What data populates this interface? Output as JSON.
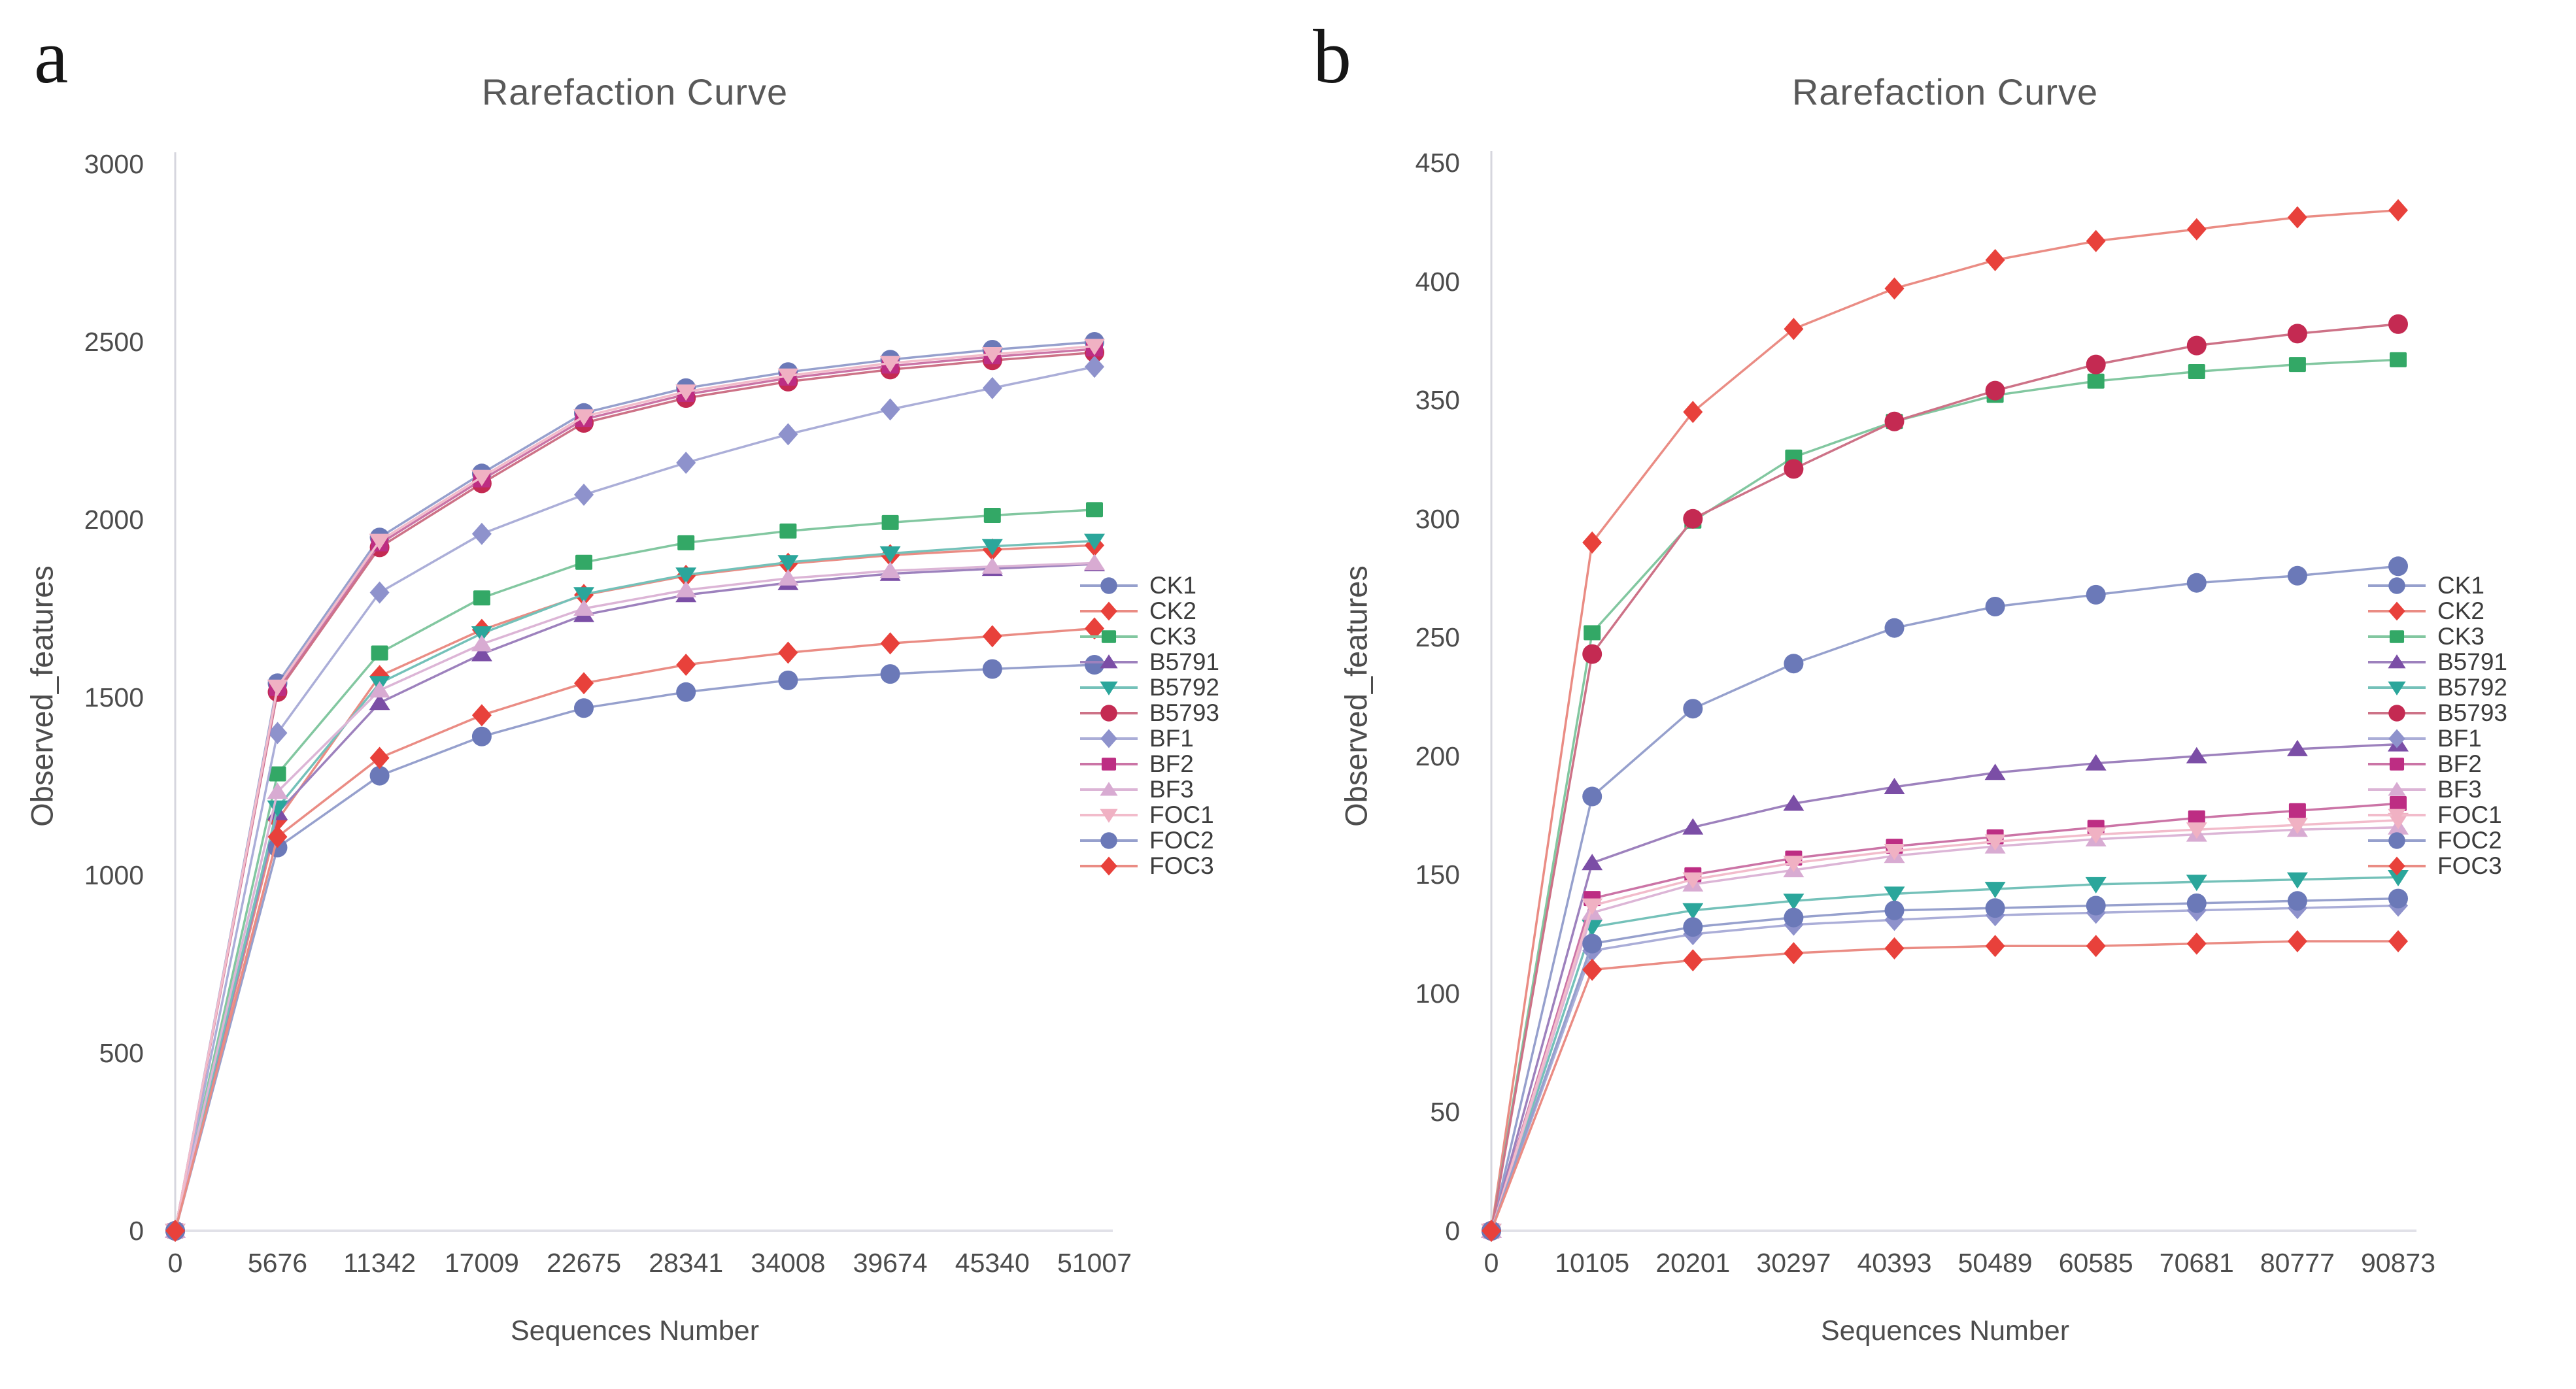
{
  "figure": {
    "background": "#ffffff",
    "title_color": "#595959"
  },
  "chart_data": [
    {
      "type": "line",
      "panel_letter": "a",
      "title": "Rarefaction Curve",
      "xlabel": "Sequences Number",
      "ylabel": "Observed_features",
      "legend_position": "right",
      "grid": false,
      "ylim": [
        0,
        3000
      ],
      "yticks": [
        0,
        500,
        1000,
        1500,
        2000,
        2500,
        3000
      ],
      "x": [
        0,
        5676,
        11342,
        17009,
        22675,
        28341,
        34008,
        39674,
        45340,
        51007
      ],
      "series": [
        {
          "name": "CK1",
          "marker": "circle",
          "color": "#6b79b8",
          "line_color": "#96a0cd",
          "values": [
            0,
            1540,
            1950,
            2130,
            2300,
            2370,
            2415,
            2450,
            2478,
            2500
          ]
        },
        {
          "name": "CK2",
          "marker": "diamond",
          "color": "#e8413b",
          "line_color": "#ea8c84",
          "values": [
            0,
            1155,
            1560,
            1690,
            1788,
            1842,
            1876,
            1900,
            1916,
            1928
          ]
        },
        {
          "name": "CK3",
          "marker": "square",
          "color": "#33a866",
          "line_color": "#82c7a0",
          "values": [
            0,
            1285,
            1625,
            1780,
            1880,
            1935,
            1968,
            1992,
            2012,
            2028
          ]
        },
        {
          "name": "B5791",
          "marker": "triangle-up",
          "color": "#7b4ea6",
          "line_color": "#9d81bd",
          "values": [
            0,
            1175,
            1485,
            1622,
            1732,
            1788,
            1822,
            1848,
            1862,
            1875
          ]
        },
        {
          "name": "B5792",
          "marker": "triangle-down",
          "color": "#2ba69b",
          "line_color": "#74c1b9",
          "values": [
            0,
            1190,
            1540,
            1680,
            1790,
            1845,
            1880,
            1905,
            1925,
            1940
          ]
        },
        {
          "name": "B5793",
          "marker": "circle",
          "color": "#c42a52",
          "line_color": "#cd7287",
          "values": [
            0,
            1515,
            1922,
            2102,
            2272,
            2342,
            2388,
            2422,
            2448,
            2470
          ]
        },
        {
          "name": "BF1",
          "marker": "diamond",
          "color": "#8e92cc",
          "line_color": "#abaed8",
          "values": [
            0,
            1400,
            1795,
            1960,
            2070,
            2160,
            2240,
            2310,
            2370,
            2430
          ]
        },
        {
          "name": "BF2",
          "marker": "square",
          "color": "#bd2d83",
          "line_color": "#cb74a6",
          "values": [
            0,
            1525,
            1932,
            2112,
            2282,
            2352,
            2398,
            2432,
            2458,
            2480
          ]
        },
        {
          "name": "BF3",
          "marker": "triangle-up",
          "color": "#d8abd2",
          "line_color": "#dcb5d6",
          "values": [
            0,
            1235,
            1520,
            1650,
            1750,
            1802,
            1835,
            1856,
            1868,
            1878
          ]
        },
        {
          "name": "FOC1",
          "marker": "triangle-down",
          "color": "#f0b1c3",
          "line_color": "#f2bccb",
          "values": [
            0,
            1530,
            1940,
            2120,
            2290,
            2360,
            2405,
            2440,
            2465,
            2488
          ]
        },
        {
          "name": "FOC2",
          "marker": "circle",
          "color": "#6b79b8",
          "line_color": "#96a0cd",
          "values": [
            0,
            1078,
            1280,
            1390,
            1470,
            1515,
            1548,
            1566,
            1580,
            1592
          ]
        },
        {
          "name": "FOC3",
          "marker": "diamond",
          "color": "#e8413b",
          "line_color": "#ea8c84",
          "values": [
            0,
            1108,
            1330,
            1450,
            1540,
            1592,
            1626,
            1652,
            1672,
            1694
          ]
        }
      ]
    },
    {
      "type": "line",
      "panel_letter": "b",
      "title": "Rarefaction Curve",
      "xlabel": "Sequences Number",
      "ylabel": "Observed_features",
      "legend_position": "right",
      "grid": false,
      "ylim": [
        0,
        450
      ],
      "yticks": [
        0,
        50,
        100,
        150,
        200,
        250,
        300,
        350,
        400,
        450
      ],
      "x": [
        0,
        10105,
        20201,
        30297,
        40393,
        50489,
        60585,
        70681,
        80777,
        90873
      ],
      "series": [
        {
          "name": "CK1",
          "marker": "circle",
          "color": "#6b79b8",
          "line_color": "#96a0cd",
          "values": [
            0,
            183,
            220,
            239,
            254,
            263,
            268,
            273,
            276,
            280
          ]
        },
        {
          "name": "CK2",
          "marker": "diamond",
          "color": "#e8413b",
          "line_color": "#ea8c84",
          "values": [
            0,
            290,
            345,
            380,
            397,
            409,
            417,
            422,
            427,
            430
          ]
        },
        {
          "name": "CK3",
          "marker": "square",
          "color": "#33a866",
          "line_color": "#82c7a0",
          "values": [
            0,
            252,
            299,
            326,
            341,
            352,
            358,
            362,
            365,
            367
          ]
        },
        {
          "name": "B5791",
          "marker": "triangle-up",
          "color": "#7b4ea6",
          "line_color": "#9d81bd",
          "values": [
            0,
            155,
            170,
            180,
            187,
            193,
            197,
            200,
            203,
            205
          ]
        },
        {
          "name": "B5792",
          "marker": "triangle-down",
          "color": "#2ba69b",
          "line_color": "#74c1b9",
          "values": [
            0,
            128,
            135,
            139,
            142,
            144,
            146,
            147,
            148,
            149
          ]
        },
        {
          "name": "B5793",
          "marker": "circle",
          "color": "#c42a52",
          "line_color": "#cd7287",
          "values": [
            0,
            243,
            300,
            321,
            341,
            354,
            365,
            373,
            378,
            382
          ]
        },
        {
          "name": "BF1",
          "marker": "diamond",
          "color": "#8e92cc",
          "line_color": "#abaed8",
          "values": [
            0,
            118,
            125,
            129,
            131,
            133,
            134,
            135,
            136,
            137
          ]
        },
        {
          "name": "BF2",
          "marker": "square",
          "color": "#bd2d83",
          "line_color": "#cb74a6",
          "values": [
            0,
            140,
            150,
            157,
            162,
            166,
            170,
            174,
            177,
            180
          ]
        },
        {
          "name": "BF3",
          "marker": "triangle-up",
          "color": "#d8abd2",
          "line_color": "#dcb5d6",
          "values": [
            0,
            134,
            146,
            152,
            158,
            162,
            165,
            167,
            169,
            170
          ]
        },
        {
          "name": "FOC1",
          "marker": "triangle-down",
          "color": "#f0b1c3",
          "line_color": "#f2bccb",
          "values": [
            0,
            137,
            148,
            155,
            160,
            164,
            167,
            169,
            171,
            173
          ]
        },
        {
          "name": "FOC2",
          "marker": "circle",
          "color": "#6b79b8",
          "line_color": "#96a0cd",
          "values": [
            0,
            121,
            128,
            132,
            135,
            136,
            137,
            138,
            139,
            140
          ]
        },
        {
          "name": "FOC3",
          "marker": "diamond",
          "color": "#e8413b",
          "line_color": "#ea8c84",
          "values": [
            0,
            110,
            114,
            117,
            119,
            120,
            120,
            121,
            122,
            122
          ]
        }
      ]
    }
  ]
}
